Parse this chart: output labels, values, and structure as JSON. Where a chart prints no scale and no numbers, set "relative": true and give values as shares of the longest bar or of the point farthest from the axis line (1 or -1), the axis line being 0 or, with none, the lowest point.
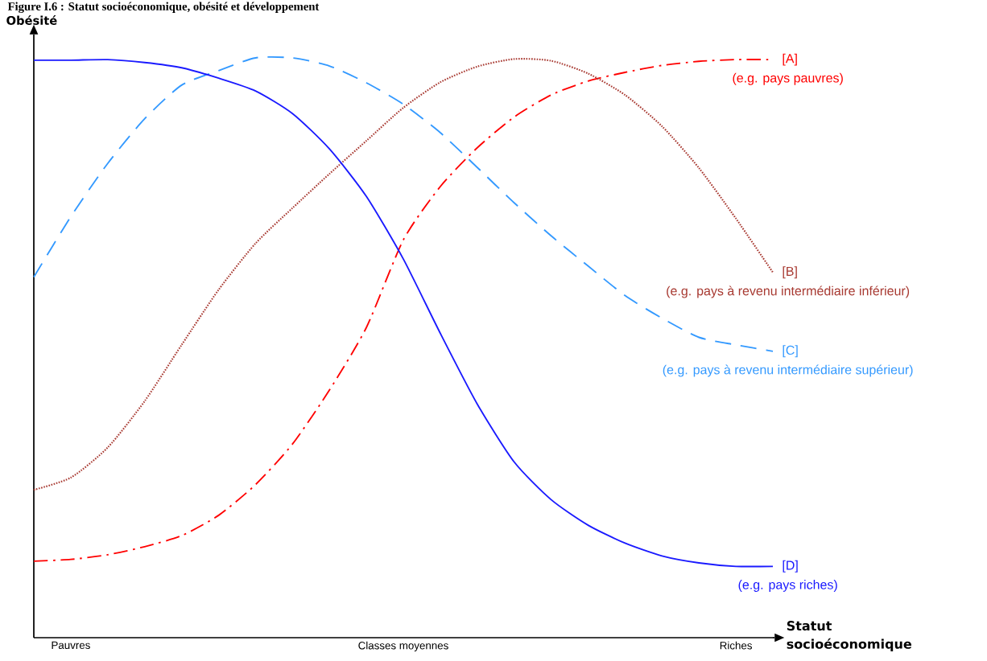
{
  "chart_data": {
    "type": "line",
    "title": "Figure I.6 : Statut socioéconomique, obésité et développement",
    "xlabel": "Statut socioéconomique",
    "ylabel": "Obésité",
    "relative": true,
    "legend": false,
    "tick_labels": "x",
    "categories": [
      null,
      "Pauvres",
      null,
      null,
      null,
      null,
      null,
      null,
      null,
      null,
      "Classes moyennes",
      null,
      null,
      null,
      null,
      null,
      null,
      null,
      null,
      "Riches",
      null
    ],
    "series": [
      {
        "name": "[A]",
        "color": "#ff0000",
        "line_style": "dashdot",
        "values": [
          0.132,
          0.135,
          0.143,
          0.157,
          0.176,
          0.211,
          0.264,
          0.334,
          0.427,
          0.535,
          0.686,
          0.778,
          0.845,
          0.898,
          0.936,
          0.96,
          0.975,
          0.987,
          0.994,
          0.997,
          0.997
        ]
      },
      {
        "name": "[B]",
        "color": "#a83a32",
        "line_style": "dotted",
        "values": [
          0.255,
          0.276,
          0.328,
          0.408,
          0.505,
          0.6,
          0.68,
          0.741,
          0.8,
          0.857,
          0.914,
          0.958,
          0.985,
          0.998,
          0.995,
          0.973,
          0.936,
          0.882,
          0.81,
          0.723,
          0.63
        ]
      },
      {
        "name": "[C]",
        "color": "#3399ff",
        "line_style": "dashed",
        "values": [
          0.622,
          0.726,
          0.818,
          0.895,
          0.953,
          0.978,
          1.0,
          1.0,
          0.986,
          0.957,
          0.92,
          0.871,
          0.811,
          0.75,
          0.693,
          0.641,
          0.59,
          0.551,
          0.518,
          0.505,
          0.494
        ]
      },
      {
        "name": "[D]",
        "color": "#1a1aff",
        "line_style": "solid",
        "values": [
          0.996,
          0.996,
          0.997,
          0.992,
          0.983,
          0.965,
          0.943,
          0.904,
          0.843,
          0.761,
          0.653,
          0.525,
          0.403,
          0.303,
          0.238,
          0.194,
          0.163,
          0.141,
          0.129,
          0.123,
          0.123
        ]
      }
    ],
    "annotations": [
      "(e.g. pays pauvres)",
      "(e.g. pays à revenu intermédiaire inférieur)",
      "(e.g. pays à revenu intermédiaire supérieur)",
      "(e.g. pays riches)"
    ]
  }
}
